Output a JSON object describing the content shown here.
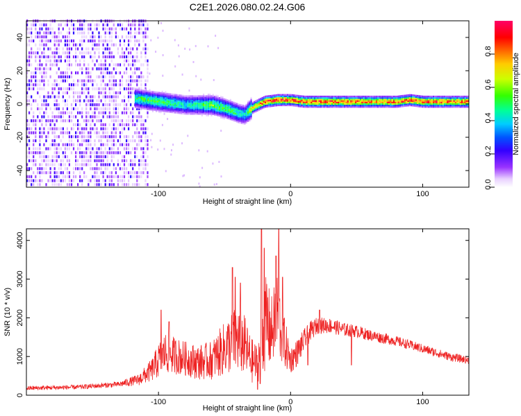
{
  "title": "C2E1.2026.080.02.24.G06",
  "colors": {
    "snr_line": "#ee2222",
    "axis": "#000000"
  },
  "chart_data": [
    {
      "type": "heatmap",
      "name": "spectrogram",
      "xlabel": "Height of straight line (km)",
      "ylabel": "Frequency (Hz)",
      "xlim": [
        -200,
        135
      ],
      "ylim": [
        -50,
        50
      ],
      "xticks": [
        -100,
        0,
        100
      ],
      "yticks": [
        -40,
        -20,
        0,
        20,
        40
      ],
      "colorbar": {
        "label": "Normalized spectral amplitude",
        "range": [
          0,
          1
        ],
        "ticks": [
          0.0,
          0.2,
          0.4,
          0.6,
          0.8
        ]
      },
      "ridge": {
        "x": [
          -118,
          -110,
          -100,
          -90,
          -80,
          -70,
          -60,
          -50,
          -40,
          -35,
          -30,
          -25,
          -20,
          -10,
          0,
          10,
          20,
          40,
          60,
          80,
          90,
          100,
          110,
          120,
          135
        ],
        "freq": [
          3,
          2,
          1,
          0,
          -1,
          -1,
          -1,
          -3,
          -6,
          -7,
          -3,
          -1,
          1,
          2,
          2,
          1,
          1,
          1,
          1,
          1,
          2,
          1,
          1,
          1,
          1
        ],
        "amplitude": [
          0.5,
          0.55,
          0.55,
          0.5,
          0.45,
          0.5,
          0.6,
          0.55,
          0.5,
          0.45,
          0.7,
          0.85,
          0.9,
          0.95,
          0.9,
          0.92,
          0.95,
          0.9,
          0.9,
          0.9,
          0.95,
          0.9,
          0.95,
          0.9,
          0.9
        ]
      },
      "noise_region_x": [
        -200,
        -108
      ]
    },
    {
      "type": "line",
      "name": "snr",
      "xlabel": "Height of straight line (km)",
      "ylabel": "SNR (10 * v/v)",
      "xlim": [
        -200,
        135
      ],
      "ylim": [
        0,
        4300
      ],
      "xticks": [
        -100,
        0,
        100
      ],
      "yticks": [
        0,
        1000,
        2000,
        3000,
        4000
      ],
      "envelope": {
        "x": [
          -200,
          -160,
          -130,
          -115,
          -105,
          -100,
          -95,
          -90,
          -80,
          -70,
          -60,
          -50,
          -45,
          -40,
          -35,
          -30,
          -25,
          -22,
          -20,
          -18,
          -15,
          -12,
          -10,
          -7,
          -5,
          -2,
          0,
          5,
          10,
          15,
          20,
          30,
          40,
          50,
          60,
          80,
          100,
          120,
          135
        ],
        "mean": [
          180,
          210,
          280,
          400,
          650,
          900,
          1100,
          1050,
          950,
          850,
          900,
          1200,
          1350,
          1450,
          1300,
          900,
          800,
          1400,
          1700,
          1900,
          1600,
          1900,
          2100,
          1700,
          1400,
          1100,
          900,
          1100,
          1400,
          1650,
          1800,
          1800,
          1700,
          1650,
          1550,
          1400,
          1200,
          1000,
          900
        ],
        "spread": [
          60,
          60,
          70,
          150,
          300,
          450,
          550,
          500,
          450,
          450,
          500,
          700,
          800,
          900,
          800,
          600,
          500,
          900,
          1100,
          1300,
          900,
          1000,
          1200,
          900,
          700,
          500,
          350,
          350,
          300,
          250,
          220,
          200,
          180,
          160,
          150,
          130,
          120,
          110,
          100
        ]
      },
      "peaks": [
        {
          "x": -98,
          "y": 2200
        },
        {
          "x": -92,
          "y": 1900
        },
        {
          "x": -44,
          "y": 3300
        },
        {
          "x": -42,
          "y": 3050
        },
        {
          "x": -38,
          "y": 2900
        },
        {
          "x": -22,
          "y": 4300
        },
        {
          "x": -20,
          "y": 3800
        },
        {
          "x": -11,
          "y": 3600
        },
        {
          "x": -9,
          "y": 4300
        },
        {
          "x": -6,
          "y": 3050
        },
        {
          "x": 22,
          "y": 2200
        }
      ],
      "dips": [
        {
          "x": -25,
          "y": 150
        },
        {
          "x": -23,
          "y": 300
        },
        {
          "x": 13,
          "y": 780
        },
        {
          "x": 46,
          "y": 780
        }
      ]
    }
  ]
}
